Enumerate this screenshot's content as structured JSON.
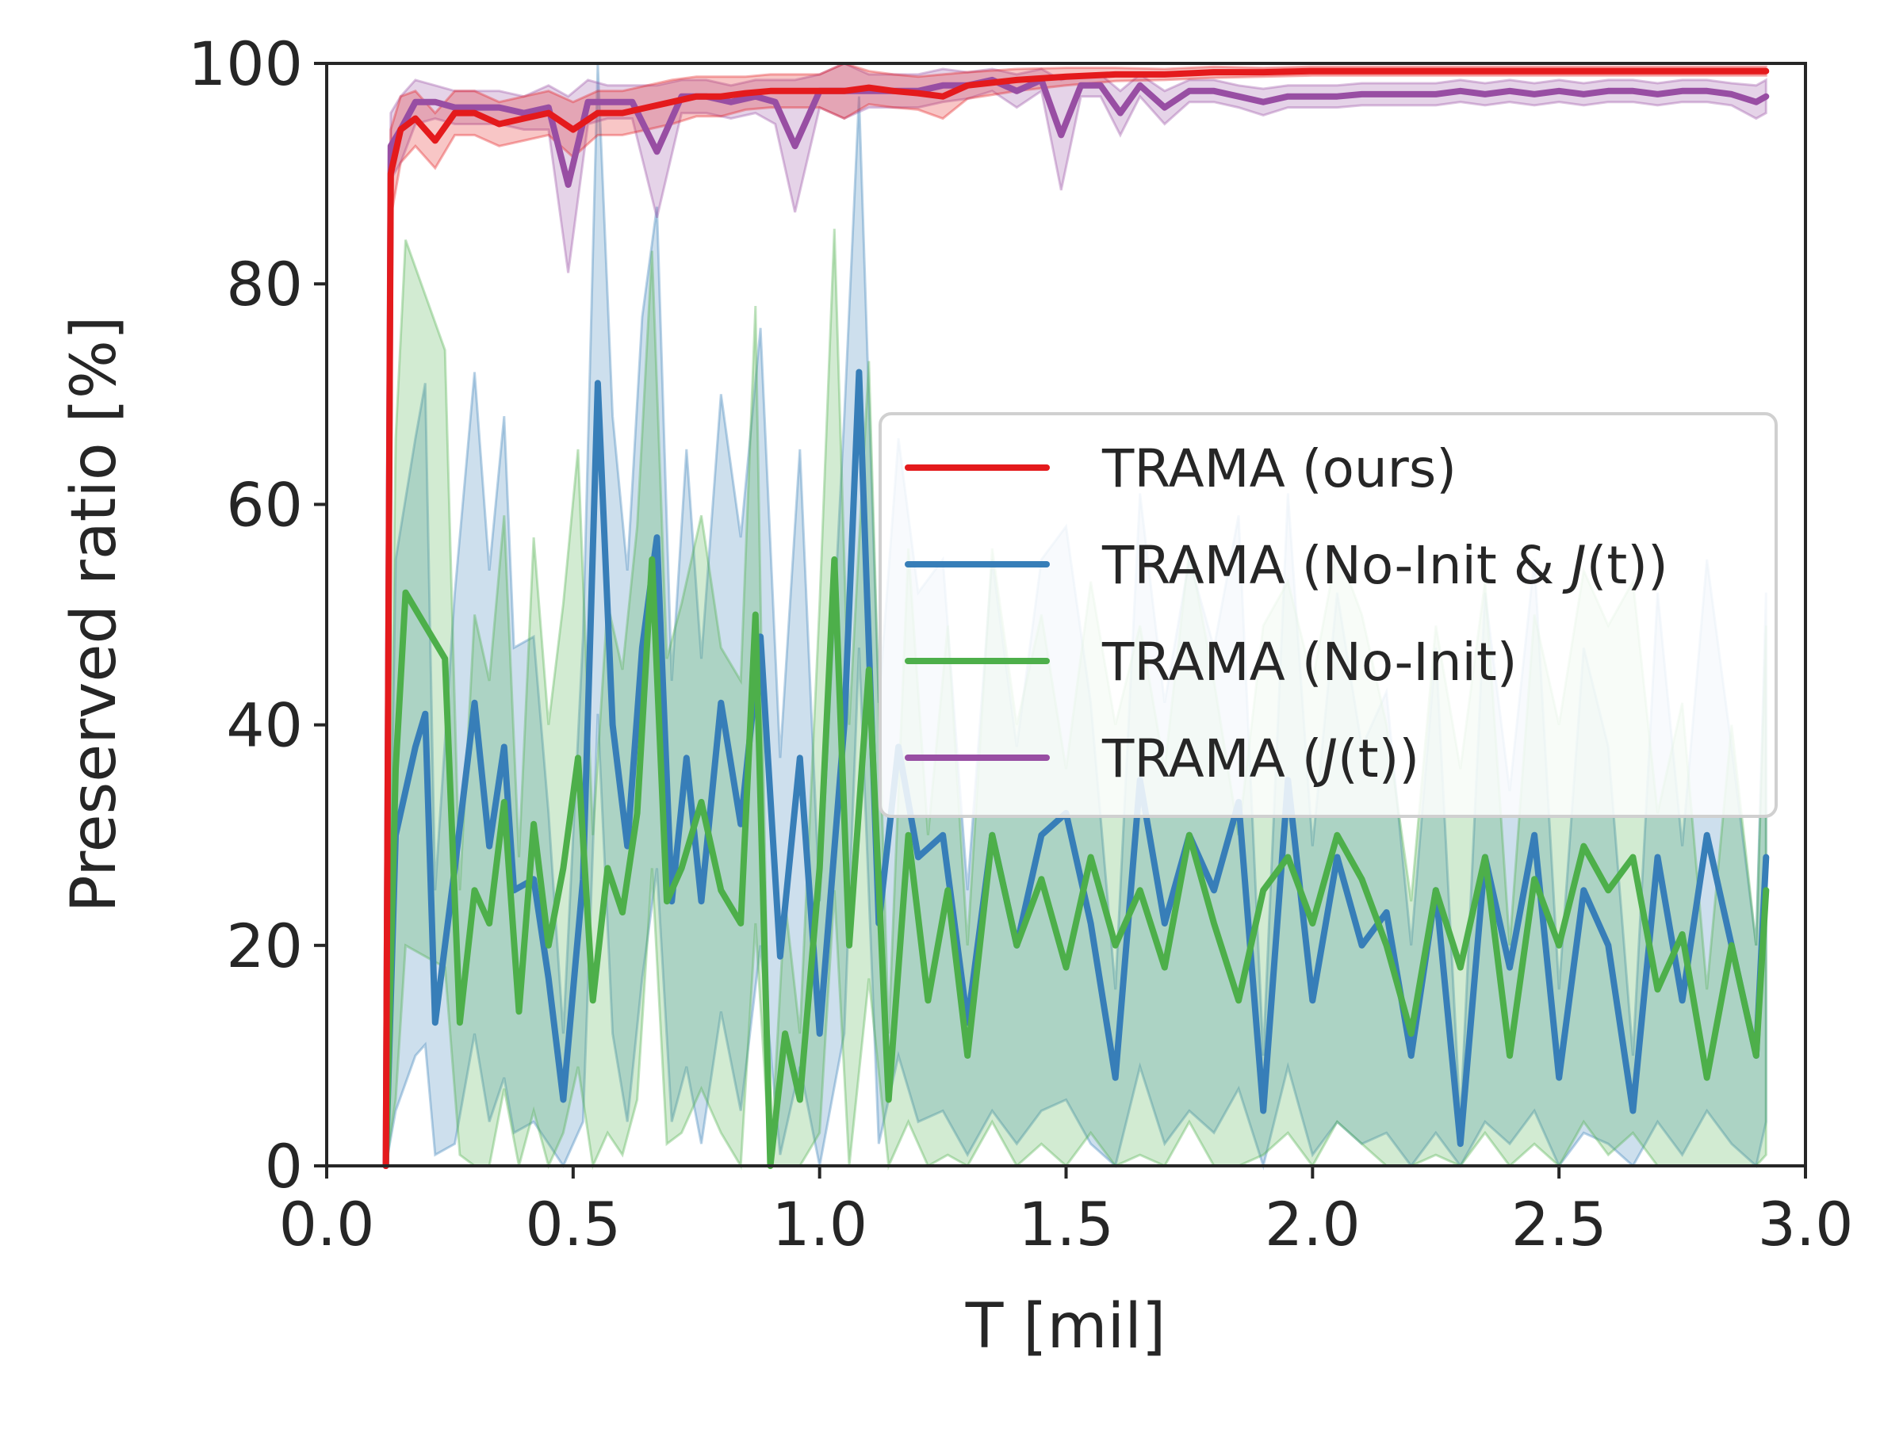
{
  "chart_data": {
    "type": "line",
    "title": "",
    "xlabel": "T [mil]",
    "ylabel": "Preserved ratio [%]",
    "xlim": [
      0.0,
      3.0
    ],
    "ylim": [
      0,
      100
    ],
    "xticks": [
      "0.0",
      "0.5",
      "1.0",
      "1.5",
      "2.0",
      "2.5",
      "3.0"
    ],
    "yticks": [
      "0",
      "20",
      "40",
      "60",
      "80",
      "100"
    ],
    "grid": false,
    "legend_position": "center-right",
    "band": "shaded min-max range across runs",
    "series": [
      {
        "name": "TRAMA (ours)",
        "legend": {
          "prefix": "TRAMA (ours)",
          "italic": "",
          "suffix": ""
        },
        "color": "#e41a1c",
        "x": [
          0.12,
          0.13,
          0.15,
          0.18,
          0.22,
          0.26,
          0.3,
          0.35,
          0.4,
          0.45,
          0.5,
          0.55,
          0.6,
          0.65,
          0.7,
          0.75,
          0.8,
          0.85,
          0.9,
          0.95,
          1.0,
          1.05,
          1.1,
          1.15,
          1.2,
          1.25,
          1.3,
          1.4,
          1.5,
          1.6,
          1.7,
          1.8,
          1.9,
          2.0,
          2.1,
          2.2,
          2.3,
          2.4,
          2.5,
          2.6,
          2.7,
          2.8,
          2.92
        ],
        "y": [
          0,
          90,
          94,
          95,
          93,
          95.5,
          95.5,
          94.5,
          95,
          95.5,
          94,
          95.5,
          95.5,
          96,
          96.5,
          97,
          97,
          97.3,
          97.5,
          97.5,
          97.5,
          97.5,
          97.8,
          97.5,
          97.3,
          97,
          98,
          98.5,
          98.8,
          99,
          99,
          99.2,
          99.2,
          99.3,
          99.3,
          99.3,
          99.3,
          99.3,
          99.3,
          99.3,
          99.3,
          99.3,
          99.3
        ],
        "band_half_width": [
          0,
          4,
          3,
          2.5,
          2.5,
          2,
          2,
          2,
          2,
          2,
          2.5,
          2,
          2,
          2,
          2,
          1.8,
          1.8,
          1.5,
          1.5,
          1.5,
          1.5,
          2.5,
          1.5,
          1.5,
          1.5,
          2,
          1.2,
          1,
          0.8,
          0.6,
          0.5,
          0.5,
          0.4,
          0.4,
          0.4,
          0.4,
          0.4,
          0.4,
          0.4,
          0.4,
          0.4,
          0.4,
          0.4
        ]
      },
      {
        "name": "TRAMA (No-Init & J(t))",
        "legend": {
          "prefix": "TRAMA (No-Init & ",
          "italic": "J",
          "suffix": "(t))"
        },
        "color": "#377eb8",
        "x": [
          0.12,
          0.14,
          0.18,
          0.2,
          0.22,
          0.26,
          0.3,
          0.33,
          0.36,
          0.38,
          0.42,
          0.45,
          0.48,
          0.52,
          0.55,
          0.58,
          0.61,
          0.64,
          0.67,
          0.7,
          0.73,
          0.76,
          0.8,
          0.84,
          0.88,
          0.92,
          0.96,
          1.0,
          1.05,
          1.08,
          1.12,
          1.16,
          1.2,
          1.25,
          1.3,
          1.35,
          1.4,
          1.45,
          1.5,
          1.55,
          1.6,
          1.65,
          1.7,
          1.75,
          1.8,
          1.85,
          1.9,
          1.95,
          2.0,
          2.05,
          2.1,
          2.15,
          2.2,
          2.25,
          2.3,
          2.35,
          2.4,
          2.45,
          2.5,
          2.55,
          2.6,
          2.65,
          2.7,
          2.75,
          2.8,
          2.85,
          2.9,
          2.92
        ],
        "y": [
          0,
          30,
          38,
          41,
          13,
          27,
          42,
          29,
          38,
          25,
          26,
          17,
          6,
          26,
          71,
          40,
          29,
          47,
          57,
          24,
          37,
          24,
          42,
          31,
          48,
          19,
          37,
          12,
          40,
          72,
          22,
          38,
          28,
          30,
          13,
          30,
          20,
          30,
          32,
          22,
          8,
          35,
          22,
          30,
          25,
          33,
          5,
          35,
          15,
          28,
          20,
          23,
          10,
          25,
          2,
          28,
          18,
          30,
          8,
          25,
          20,
          5,
          28,
          15,
          30,
          20,
          10,
          28
        ],
        "band_half_width": [
          0,
          25,
          28,
          30,
          12,
          25,
          30,
          25,
          30,
          22,
          22,
          15,
          6,
          22,
          30,
          28,
          25,
          30,
          30,
          20,
          28,
          22,
          28,
          26,
          28,
          18,
          28,
          12,
          28,
          25,
          20,
          28,
          24,
          25,
          12,
          25,
          18,
          25,
          26,
          20,
          8,
          26,
          20,
          25,
          22,
          26,
          5,
          26,
          14,
          24,
          18,
          20,
          10,
          22,
          2,
          24,
          16,
          25,
          8,
          22,
          18,
          5,
          24,
          14,
          25,
          18,
          10,
          24
        ]
      },
      {
        "name": "TRAMA (No-Init)",
        "legend": {
          "prefix": "TRAMA (No-Init)",
          "italic": "",
          "suffix": ""
        },
        "color": "#4daf4a",
        "x": [
          0.12,
          0.14,
          0.16,
          0.2,
          0.24,
          0.27,
          0.3,
          0.33,
          0.36,
          0.39,
          0.42,
          0.45,
          0.48,
          0.51,
          0.54,
          0.57,
          0.6,
          0.63,
          0.66,
          0.69,
          0.72,
          0.76,
          0.8,
          0.84,
          0.87,
          0.9,
          0.93,
          0.96,
          1.0,
          1.03,
          1.06,
          1.1,
          1.14,
          1.18,
          1.22,
          1.26,
          1.3,
          1.35,
          1.4,
          1.45,
          1.5,
          1.55,
          1.6,
          1.65,
          1.7,
          1.75,
          1.8,
          1.85,
          1.9,
          1.95,
          2.0,
          2.05,
          2.1,
          2.15,
          2.2,
          2.25,
          2.3,
          2.35,
          2.4,
          2.45,
          2.5,
          2.55,
          2.6,
          2.65,
          2.7,
          2.75,
          2.8,
          2.85,
          2.9,
          2.92
        ],
        "y": [
          0,
          36,
          52,
          49,
          46,
          13,
          25,
          22,
          33,
          14,
          31,
          20,
          27,
          37,
          15,
          27,
          23,
          32,
          55,
          24,
          27,
          33,
          25,
          22,
          50,
          0,
          12,
          6,
          27,
          55,
          20,
          45,
          6,
          30,
          15,
          25,
          10,
          30,
          20,
          26,
          18,
          28,
          20,
          25,
          18,
          30,
          22,
          15,
          25,
          28,
          22,
          30,
          26,
          20,
          12,
          25,
          18,
          28,
          10,
          26,
          20,
          29,
          25,
          28,
          16,
          21,
          8,
          20,
          10,
          25
        ],
        "band_half_width": [
          0,
          30,
          32,
          30,
          28,
          12,
          25,
          22,
          26,
          14,
          26,
          20,
          24,
          28,
          15,
          24,
          22,
          26,
          28,
          22,
          24,
          26,
          22,
          22,
          28,
          0,
          12,
          6,
          24,
          30,
          20,
          28,
          6,
          26,
          15,
          24,
          10,
          26,
          20,
          24,
          18,
          25,
          20,
          24,
          18,
          26,
          22,
          15,
          24,
          25,
          22,
          26,
          24,
          20,
          12,
          24,
          18,
          25,
          10,
          24,
          20,
          25,
          24,
          25,
          16,
          21,
          8,
          20,
          10,
          24
        ]
      },
      {
        "name": "TRAMA (J(t))",
        "legend": {
          "prefix": "TRAMA (",
          "italic": "J",
          "suffix": "(t))"
        },
        "color": "#984ea3",
        "x": [
          0.12,
          0.13,
          0.15,
          0.18,
          0.22,
          0.26,
          0.3,
          0.35,
          0.4,
          0.45,
          0.49,
          0.53,
          0.57,
          0.62,
          0.67,
          0.72,
          0.77,
          0.82,
          0.87,
          0.91,
          0.95,
          1.0,
          1.05,
          1.1,
          1.15,
          1.2,
          1.25,
          1.3,
          1.35,
          1.4,
          1.45,
          1.49,
          1.53,
          1.57,
          1.61,
          1.65,
          1.7,
          1.75,
          1.8,
          1.85,
          1.9,
          1.95,
          2.0,
          2.05,
          2.1,
          2.15,
          2.2,
          2.25,
          2.3,
          2.35,
          2.4,
          2.45,
          2.5,
          2.55,
          2.6,
          2.65,
          2.7,
          2.75,
          2.8,
          2.85,
          2.9,
          2.92
        ],
        "y": [
          0,
          92.5,
          94,
          96.5,
          96.5,
          96,
          96,
          96,
          95.5,
          96,
          89,
          96.5,
          96.5,
          96.5,
          92,
          97,
          97,
          96.5,
          97,
          96.5,
          92.5,
          97.5,
          97.5,
          97.5,
          97.5,
          97.5,
          98,
          98,
          98.5,
          97.5,
          98.5,
          93.5,
          98,
          98,
          95.5,
          98,
          96,
          97.5,
          97.5,
          97,
          96.5,
          97,
          97,
          97,
          97.2,
          97.2,
          97.2,
          97.2,
          97.5,
          97.2,
          97.5,
          97.2,
          97.5,
          97.2,
          97.5,
          97.5,
          97.2,
          97.5,
          97.5,
          97.2,
          96.5,
          97
        ],
        "band_half_width": [
          0,
          3,
          3,
          2,
          1.5,
          1.5,
          1.5,
          1.5,
          1.5,
          2,
          8,
          2,
          1.5,
          1.5,
          6,
          1.5,
          1.5,
          1.5,
          1.5,
          2,
          6,
          1.5,
          2.5,
          1.5,
          1.5,
          1.5,
          1.5,
          1.2,
          1,
          1.5,
          1,
          5,
          1,
          1,
          2,
          1,
          1.5,
          1,
          1,
          1,
          1.2,
          1,
          1,
          1,
          1,
          1,
          1,
          1,
          1,
          1,
          1,
          1,
          1,
          1,
          1,
          1,
          1,
          1,
          1,
          1,
          1.5,
          1.5
        ]
      }
    ]
  }
}
